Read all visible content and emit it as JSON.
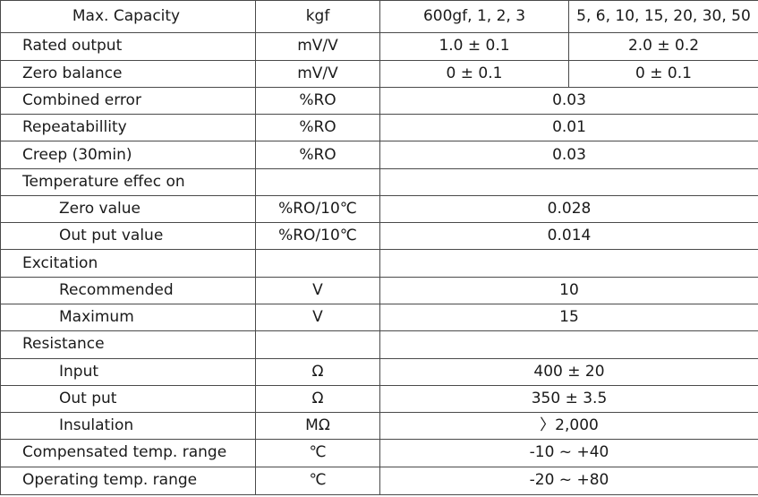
{
  "header": {
    "parameter": "Max. Capacity",
    "unit": "kgf",
    "range_a": "600gf, 1, 2, 3",
    "range_b": "5, 6, 10, 15, 20, 30, 50"
  },
  "rows": [
    {
      "label": "Rated output",
      "unit": "mV/V",
      "a": "1.0 ± 0.1",
      "b": "2.0 ± 0.2"
    },
    {
      "label": "Zero balance",
      "unit": "mV/V",
      "a": "0 ± 0.1",
      "b": "0 ± 0.1"
    },
    {
      "label": "Combined error",
      "unit": "%RO",
      "value": "0.03"
    },
    {
      "label": "Repeatabillity",
      "unit": "%RO",
      "value": "0.01"
    },
    {
      "label": "Creep (30min)",
      "unit": "%RO",
      "value": "0.03"
    },
    {
      "label": "Temperature effec on",
      "unit": "",
      "value": ""
    },
    {
      "label": "Zero value",
      "unit": "%RO/10℃",
      "value": "0.028"
    },
    {
      "label": "Out put value",
      "unit": "%RO/10℃",
      "value": "0.014"
    },
    {
      "label": "Excitation",
      "unit": "",
      "value": ""
    },
    {
      "label": "Recommended",
      "unit": "V",
      "value": "10"
    },
    {
      "label": "Maximum",
      "unit": "V",
      "value": "15"
    },
    {
      "label": "Resistance",
      "unit": "",
      "value": ""
    },
    {
      "label": "Input",
      "unit": "Ω",
      "value": "400 ± 20"
    },
    {
      "label": "Out put",
      "unit": "Ω",
      "value": "350 ± 3.5"
    },
    {
      "label": "Insulation",
      "unit": "MΩ",
      "value": "〉2,000"
    },
    {
      "label": "Compensated temp. range",
      "unit": "℃",
      "value": "-10 ~ +40"
    },
    {
      "label": "Operating temp. range",
      "unit": "℃",
      "value": "-20 ~ +80"
    }
  ]
}
